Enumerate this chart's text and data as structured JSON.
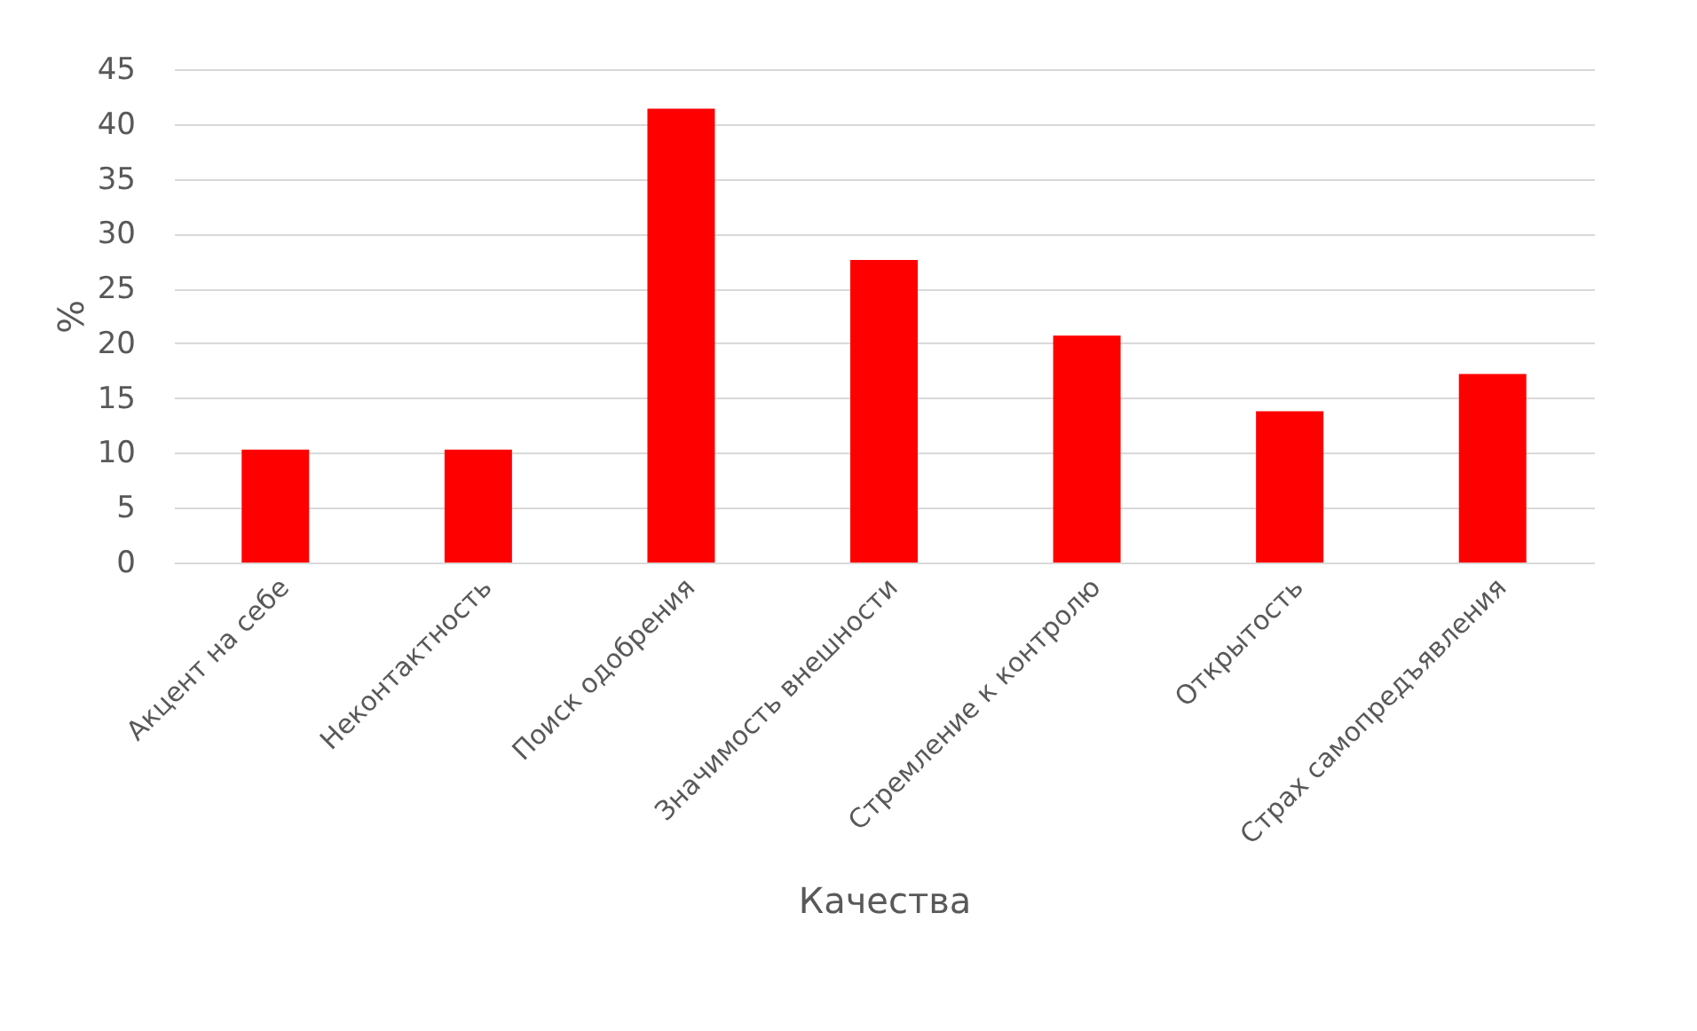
{
  "chart_data": {
    "type": "bar",
    "xlabel": "Качества",
    "ylabel": "%",
    "categories": [
      "Акцент на себе",
      "Неконтактность",
      "Поиск одобрения",
      "Значимость внешности",
      "Стремление к контролю",
      "Открытость",
      "Страх самопредъявления"
    ],
    "values": [
      10.3,
      10.3,
      41.4,
      27.6,
      20.7,
      13.8,
      17.2
    ],
    "color": "#ff0000",
    "ylim": [
      0,
      45
    ],
    "yticks": [
      0,
      5,
      10,
      15,
      20,
      25,
      30,
      35,
      40,
      45
    ],
    "grid": "y"
  }
}
